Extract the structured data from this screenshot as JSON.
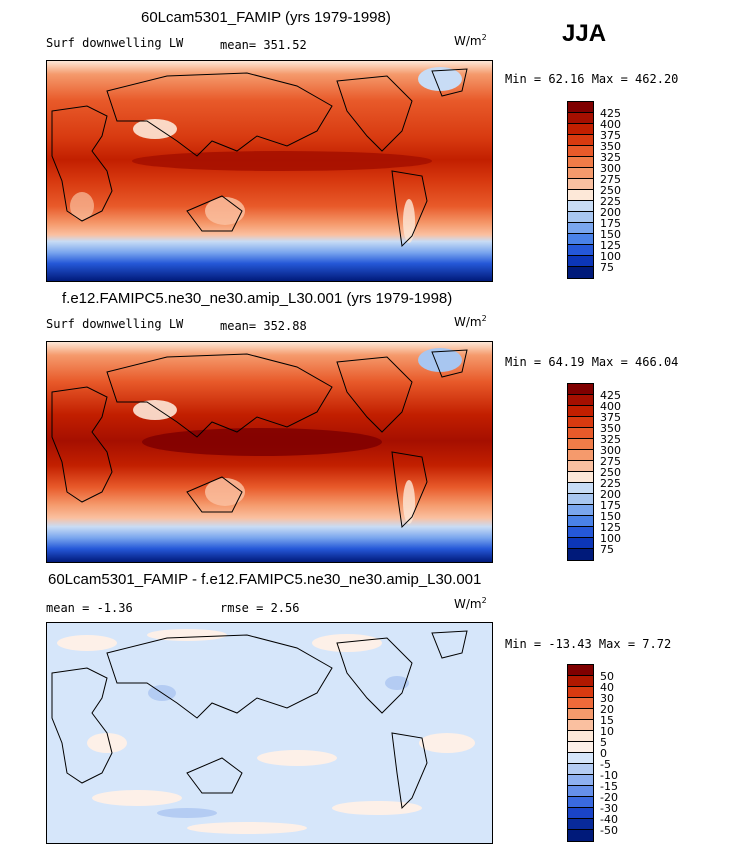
{
  "season": "JJA",
  "panels": [
    {
      "title": "60Lcam5301_FAMIP (yrs 1979-1998)",
      "variable": "Surf downwelling LW",
      "stat_left": "",
      "stat_mid": "mean= 351.52",
      "units": "W/m",
      "units_exp": "2",
      "minmax": "Min =  62.16 Max = 462.20",
      "colorbar_labels": [
        "425",
        "400",
        "375",
        "350",
        "325",
        "300",
        "275",
        "250",
        "225",
        "200",
        "175",
        "150",
        "125",
        "100",
        "75"
      ],
      "colors": [
        "#7f0000",
        "#a50f00",
        "#c21f00",
        "#d83a10",
        "#e85a2a",
        "#f07c48",
        "#f59a6c",
        "#fac0a0",
        "#fde8d8",
        "#c8dcf5",
        "#a8c6f0",
        "#7aa6ee",
        "#4a82e8",
        "#2558d8",
        "#0c36b8",
        "#001a7a"
      ]
    },
    {
      "title": "f.e12.FAMIPC5.ne30_ne30.amip_L30.001 (yrs 1979-1998)",
      "variable": "Surf downwelling LW",
      "stat_left": "",
      "stat_mid": "mean= 352.88",
      "units": "W/m",
      "units_exp": "2",
      "minmax": "Min =  64.19 Max = 466.04",
      "colorbar_labels": [
        "425",
        "400",
        "375",
        "350",
        "325",
        "300",
        "275",
        "250",
        "225",
        "200",
        "175",
        "150",
        "125",
        "100",
        "75"
      ],
      "colors": [
        "#7f0000",
        "#a50f00",
        "#c21f00",
        "#d83a10",
        "#e85a2a",
        "#f07c48",
        "#f59a6c",
        "#fac0a0",
        "#fde8d8",
        "#c8dcf5",
        "#a8c6f0",
        "#7aa6ee",
        "#4a82e8",
        "#2558d8",
        "#0c36b8",
        "#001a7a"
      ]
    },
    {
      "title": "60Lcam5301_FAMIP - f.e12.FAMIPC5.ne30_ne30.amip_L30.001",
      "variable": "",
      "stat_left": "mean =  -1.36",
      "stat_mid": "rmse =   2.56",
      "units": "W/m",
      "units_exp": "2",
      "minmax": "Min = -13.43 Max =   7.72",
      "colorbar_labels": [
        "50",
        "40",
        "30",
        "20",
        "15",
        "10",
        "5",
        "0",
        "-5",
        "-10",
        "-15",
        "-20",
        "-30",
        "-40",
        "-50"
      ],
      "colors": [
        "#7f0000",
        "#b01800",
        "#d83a10",
        "#ee6a3a",
        "#f59a6c",
        "#fac0a0",
        "#fde8d8",
        "#fdf0e8",
        "#d6e6fa",
        "#b4ccf3",
        "#8eb0f0",
        "#6690ea",
        "#3a6ae0",
        "#1a44c8",
        "#082a9a",
        "#001a7a"
      ]
    }
  ]
}
